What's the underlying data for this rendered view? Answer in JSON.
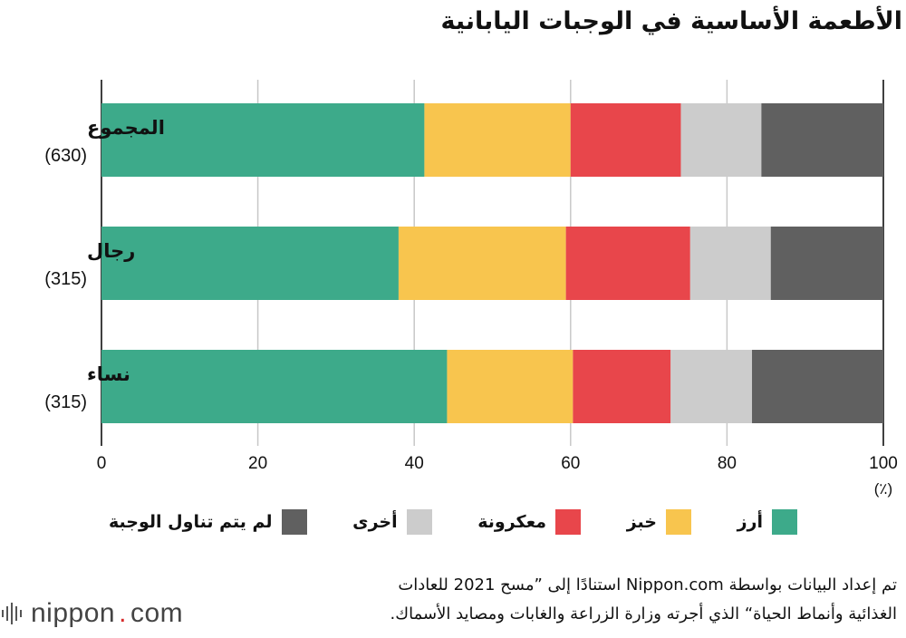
{
  "title": "الأطعمة الأساسية في الوجبات اليابانية",
  "chart_data": {
    "type": "bar",
    "orientation": "horizontal",
    "stacked": true,
    "title": "الأطعمة الأساسية في الوجبات اليابانية",
    "categories": [
      {
        "label": "المجموع",
        "count": "(630)"
      },
      {
        "label": "رجال",
        "count": "(315)"
      },
      {
        "label": "نساء",
        "count": "(315)"
      }
    ],
    "series": [
      {
        "name": "أرز",
        "color": "#3daa8a",
        "values": [
          41.3,
          38.0,
          44.2
        ]
      },
      {
        "name": "خبز",
        "color": "#f8c54e",
        "values": [
          18.7,
          21.4,
          16.1
        ]
      },
      {
        "name": "معكرونة",
        "color": "#e8464b",
        "values": [
          14.1,
          15.9,
          12.5
        ]
      },
      {
        "name": "أخرى",
        "color": "#cccccc",
        "values": [
          10.3,
          10.3,
          10.4
        ]
      },
      {
        "name": "لم يتم تناول الوجبة",
        "color": "#606060",
        "values": [
          15.6,
          14.4,
          16.8
        ]
      }
    ],
    "xlim": [
      0,
      100
    ],
    "xticks": [
      "0",
      "20",
      "40",
      "60",
      "80",
      "100"
    ],
    "xunit": "(٪)",
    "grid": true,
    "legend_position": "bottom"
  },
  "source": {
    "line1": "تم إعداد البيانات بواسطة Nippon.com استنادًا إلى ”مسح 2021 للعادات",
    "line2": "الغذائية وأنماط الحياة“ الذي أجرته وزارة الزراعة والغابات ومصايد الأسماك."
  },
  "logo": {
    "name": "nippon",
    "dot": ".",
    "suffix": "com"
  }
}
